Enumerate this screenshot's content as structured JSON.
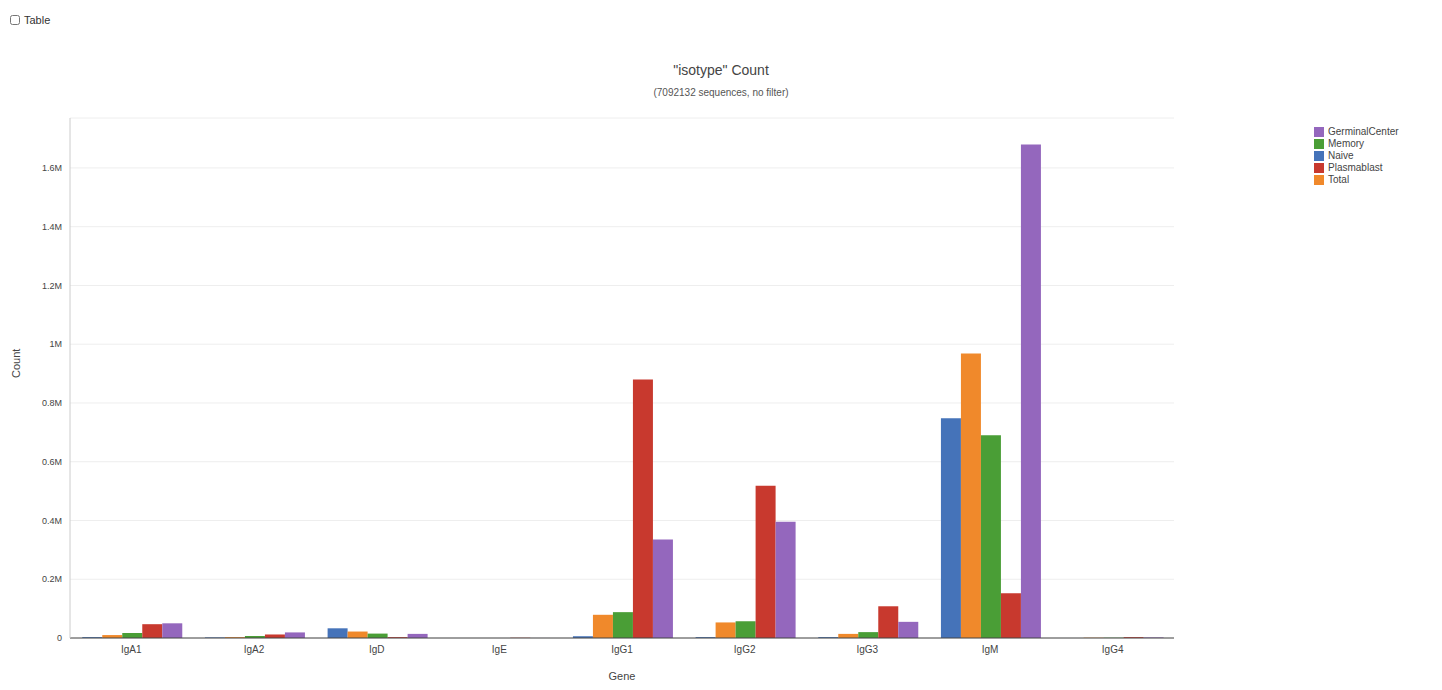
{
  "chart_data": {
    "type": "bar",
    "title": "\"isotype\" Count",
    "subtitle": "(7092132 sequences, no filter)",
    "annotations": [
      "Table"
    ],
    "x_label": "Gene",
    "y_label": "Count",
    "categories": [
      "IgA1",
      "IgA2",
      "IgD",
      "IgE",
      "IgG1",
      "IgG2",
      "IgG3",
      "IgM",
      "IgG4"
    ],
    "series": [
      {
        "name": "Naive",
        "color": "#4573b9",
        "values": [
          3000,
          2000,
          33000,
          0,
          6000,
          3000,
          3000,
          748000,
          0
        ]
      },
      {
        "name": "Total",
        "color": "#f0892b",
        "values": [
          10000,
          3000,
          22000,
          0,
          79000,
          53000,
          14000,
          968000,
          1000
        ]
      },
      {
        "name": "Memory",
        "color": "#4a9e36",
        "values": [
          17000,
          7000,
          15000,
          0,
          88000,
          57000,
          20000,
          690000,
          1000
        ]
      },
      {
        "name": "Plasmablast",
        "color": "#c8392e",
        "values": [
          47000,
          12000,
          3000,
          500,
          880000,
          518000,
          108000,
          152000,
          3000
        ]
      },
      {
        "name": "GerminalCenter",
        "color": "#9467bd",
        "values": [
          50000,
          19000,
          14000,
          200,
          335000,
          396000,
          55000,
          1680000,
          2000
        ]
      }
    ],
    "ylim": [
      0,
      1770000
    ],
    "yticks": [
      0,
      {
        "value": 200000,
        "label": "0.2M"
      },
      {
        "value": 400000,
        "label": "0.4M"
      },
      {
        "value": 600000,
        "label": "0.6M"
      },
      {
        "value": 800000,
        "label": "0.8M"
      },
      {
        "value": 1000000,
        "label": "1M"
      },
      {
        "value": 1200000,
        "label": "1.2M"
      },
      {
        "value": 1400000,
        "label": "1.4M"
      },
      {
        "value": 1600000,
        "label": "1.6M"
      }
    ],
    "grid": true,
    "legend": "top-right"
  }
}
